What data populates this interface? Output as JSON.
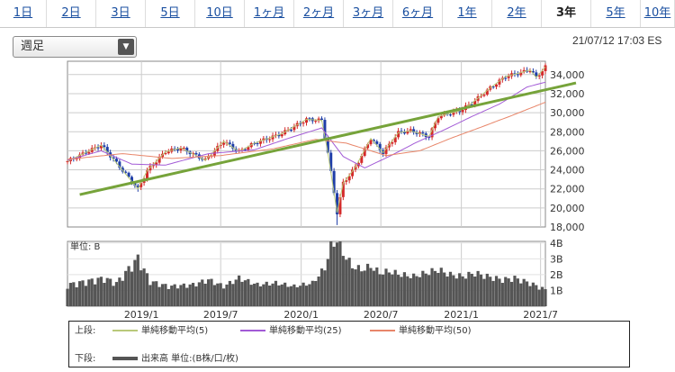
{
  "tabs": [
    {
      "label": "1日",
      "active": false
    },
    {
      "label": "2日",
      "active": false
    },
    {
      "label": "3日",
      "active": false
    },
    {
      "label": "5日",
      "active": false
    },
    {
      "label": "10日",
      "active": false
    },
    {
      "label": "1ヶ月",
      "active": false
    },
    {
      "label": "2ヶ月",
      "active": false
    },
    {
      "label": "3ヶ月",
      "active": false
    },
    {
      "label": "6ヶ月",
      "active": false
    },
    {
      "label": "1年",
      "active": false
    },
    {
      "label": "2年",
      "active": false
    },
    {
      "label": "3年",
      "active": true
    },
    {
      "label": "5年",
      "active": false
    },
    {
      "label": "10年",
      "active": false
    }
  ],
  "period_select": {
    "value": "週足",
    "icon": "chevron-down-icon"
  },
  "timestamp": "21/07/12 17:03 ES",
  "legend": {
    "upper_label": "上段:",
    "lower_label": "下段:",
    "items": [
      {
        "label": "単純移動平均(5)",
        "color": "#b9c97a"
      },
      {
        "label": "単純移動平均(25)",
        "color": "#a25ad6"
      },
      {
        "label": "単純移動平均(50)",
        "color": "#e8866a"
      }
    ],
    "volume_label": "出来高 単位:(B株/口/枚)",
    "volume_color": "#555555"
  },
  "colors": {
    "up": "#d42a2a",
    "down": "#1f3ea8",
    "trend": "#76a33a",
    "volume": "#555555",
    "grid": "#cccccc"
  },
  "chart_data": [
    {
      "type": "candlestick",
      "title": "",
      "y_ticks": [
        "34,000",
        "32,000",
        "30,000",
        "28,000",
        "26,000",
        "24,000",
        "22,000",
        "20,000",
        "18,000"
      ],
      "ylim": [
        18000,
        35400
      ],
      "x_ticks": [
        "2019/1",
        "2019/7",
        "2020/1",
        "2020/7",
        "2021/1",
        "2021/7"
      ],
      "x_range": [
        "2018-07-16",
        "2021-07-12"
      ],
      "grid": true,
      "close_path": [
        [
          "2018-07-16",
          24900
        ],
        [
          "2018-10-01",
          26600
        ],
        [
          "2018-10-29",
          25100
        ],
        [
          "2018-12-24",
          22000
        ],
        [
          "2019-01-14",
          23900
        ],
        [
          "2019-02-25",
          25900
        ],
        [
          "2019-04-01",
          26300
        ],
        [
          "2019-05-27",
          25000
        ],
        [
          "2019-07-08",
          27000
        ],
        [
          "2019-08-12",
          25900
        ],
        [
          "2019-09-16",
          26800
        ],
        [
          "2019-11-18",
          27800
        ],
        [
          "2020-01-13",
          29300
        ],
        [
          "2020-02-17",
          29200
        ],
        [
          "2020-03-02",
          25800
        ],
        [
          "2020-03-23",
          19500
        ],
        [
          "2020-04-06",
          22600
        ],
        [
          "2020-05-04",
          24300
        ],
        [
          "2020-06-08",
          27300
        ],
        [
          "2020-07-06",
          25800
        ],
        [
          "2020-08-10",
          27900
        ],
        [
          "2020-09-07",
          28100
        ],
        [
          "2020-10-19",
          27500
        ],
        [
          "2020-11-09",
          29600
        ],
        [
          "2020-12-28",
          30200
        ],
        [
          "2021-01-25",
          31000
        ],
        [
          "2021-03-08",
          32600
        ],
        [
          "2021-04-12",
          33800
        ],
        [
          "2021-05-17",
          34200
        ],
        [
          "2021-06-07",
          34500
        ],
        [
          "2021-06-21",
          33700
        ],
        [
          "2021-07-12",
          34800
        ]
      ],
      "low_extremes": [
        [
          "2018-12-24",
          21700
        ],
        [
          "2020-03-23",
          18200
        ]
      ],
      "sma25": [
        [
          "2018-07-16",
          25000
        ],
        [
          "2018-10-01",
          26000
        ],
        [
          "2018-12-10",
          24600
        ],
        [
          "2019-02-25",
          24500
        ],
        [
          "2019-06-03",
          25700
        ],
        [
          "2019-09-16",
          26100
        ],
        [
          "2019-12-02",
          27300
        ],
        [
          "2020-02-17",
          28400
        ],
        [
          "2020-04-06",
          25400
        ],
        [
          "2020-05-25",
          24200
        ],
        [
          "2020-07-20",
          25400
        ],
        [
          "2020-09-21",
          26900
        ],
        [
          "2020-11-23",
          28200
        ],
        [
          "2021-01-25",
          29600
        ],
        [
          "2021-03-29",
          30900
        ],
        [
          "2021-05-31",
          32700
        ],
        [
          "2021-07-12",
          33200
        ]
      ],
      "sma50": [
        [
          "2018-07-16",
          25100
        ],
        [
          "2018-11-19",
          25700
        ],
        [
          "2019-03-11",
          25200
        ],
        [
          "2019-07-01",
          25500
        ],
        [
          "2019-10-28",
          26200
        ],
        [
          "2020-02-03",
          27200
        ],
        [
          "2020-04-13",
          26800
        ],
        [
          "2020-07-13",
          25500
        ],
        [
          "2020-09-28",
          26000
        ],
        [
          "2020-12-07",
          27300
        ],
        [
          "2021-02-22",
          28600
        ],
        [
          "2021-04-26",
          29700
        ],
        [
          "2021-07-12",
          31100
        ]
      ],
      "trendline": [
        [
          "2018-08-13",
          21400
        ],
        [
          "2021-07-12",
          32400
        ]
      ],
      "volume": {
        "y_ticks": [
          "4B",
          "3B",
          "2B",
          "1B"
        ],
        "ylim": [
          0,
          4.1
        ],
        "unit_label": "単位: B",
        "series": [
          [
            "2018-07-16",
            1.3
          ],
          [
            "2018-08-27",
            1.5
          ],
          [
            "2018-10-08",
            1.7
          ],
          [
            "2018-11-05",
            1.4
          ],
          [
            "2018-12-24",
            2.9
          ],
          [
            "2019-01-21",
            1.5
          ],
          [
            "2019-03-04",
            1.2
          ],
          [
            "2019-04-29",
            1.3
          ],
          [
            "2019-06-03",
            1.6
          ],
          [
            "2019-07-08",
            1.2
          ],
          [
            "2019-08-12",
            1.7
          ],
          [
            "2019-09-23",
            1.3
          ],
          [
            "2019-11-04",
            1.4
          ],
          [
            "2019-12-16",
            1.2
          ],
          [
            "2020-01-27",
            1.4
          ],
          [
            "2020-02-24",
            2.3
          ],
          [
            "2020-03-09",
            3.6
          ],
          [
            "2020-03-23",
            4.0
          ],
          [
            "2020-04-06",
            3.2
          ],
          [
            "2020-04-27",
            2.4
          ],
          [
            "2020-05-18",
            2.2
          ],
          [
            "2020-06-08",
            2.4
          ],
          [
            "2020-06-29",
            2.0
          ],
          [
            "2020-07-20",
            2.1
          ],
          [
            "2020-08-17",
            1.9
          ],
          [
            "2020-09-14",
            1.8
          ],
          [
            "2020-10-12",
            2.0
          ],
          [
            "2020-11-09",
            2.2
          ],
          [
            "2020-12-07",
            1.9
          ],
          [
            "2021-01-04",
            1.8
          ],
          [
            "2021-02-01",
            2.0
          ],
          [
            "2021-03-01",
            1.8
          ],
          [
            "2021-04-05",
            1.6
          ],
          [
            "2021-05-03",
            1.7
          ],
          [
            "2021-06-07",
            1.4
          ],
          [
            "2021-07-12",
            1.0
          ]
        ]
      }
    }
  ]
}
